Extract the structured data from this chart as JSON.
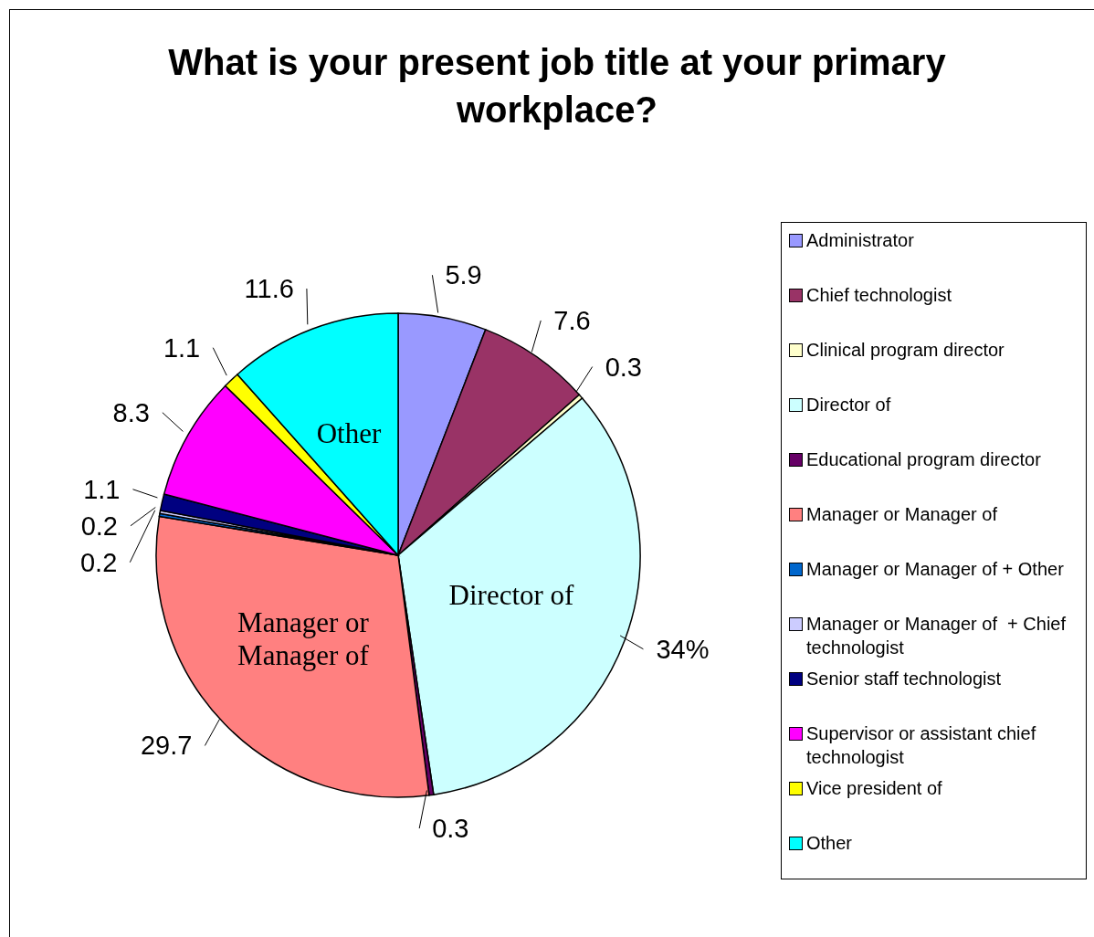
{
  "chart_data": {
    "type": "pie",
    "title": "What is your present job title at your primary workplace?",
    "categories": [
      "Administrator",
      "Chief technologist",
      "Clinical program director",
      "Director of",
      "Educational program director",
      "Manager or Manager of",
      "Manager or Manager of + Other",
      "Manager or Manager of  + Chief technologist",
      "Senior staff technologist",
      "Supervisor or assistant chief technologist",
      "Vice president of",
      "Other"
    ],
    "values": [
      5.9,
      7.6,
      0.3,
      34,
      0.3,
      29.7,
      0.2,
      0.2,
      1.1,
      8.3,
      1.1,
      11.6
    ],
    "value_labels": [
      "5.9",
      "7.6",
      "0.3",
      "34%",
      "0.3",
      "29.7",
      "0.2",
      "0.2",
      "1.1",
      "8.3",
      "1.1",
      "11.6"
    ],
    "colors": [
      "#9999ff",
      "#993366",
      "#ffffcc",
      "#ccffff",
      "#660066",
      "#ff8080",
      "#0066cc",
      "#ccccff",
      "#000080",
      "#ff00ff",
      "#ffff00",
      "#00ffff"
    ],
    "annotations": [
      {
        "text": "Other",
        "x": "Other"
      },
      {
        "text": "Director of",
        "x": "Director of"
      },
      {
        "text": "Manager or Manager of",
        "x": "Manager or Manager of"
      }
    ],
    "legend": "right"
  }
}
